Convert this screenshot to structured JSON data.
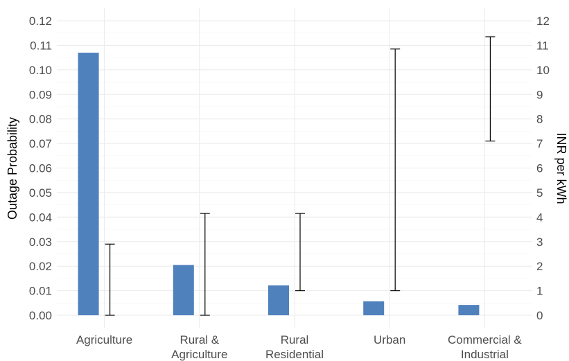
{
  "chart_data": {
    "type": "bar",
    "title": "",
    "xlabel": "",
    "ylabel": "Outage Probability",
    "y2label": "INR per kWh",
    "ylim": [
      0,
      0.12
    ],
    "y2lim": [
      0,
      12
    ],
    "grid": true,
    "categories": [
      "Agriculture",
      "Rural & Agriculture",
      "Rural Residential",
      "Urban",
      "Commercial & Industrial"
    ],
    "category_lines": [
      [
        "Agriculture"
      ],
      [
        "Rural &",
        "Agriculture"
      ],
      [
        "Rural",
        "Residential"
      ],
      [
        "Urban"
      ],
      [
        "Commercial &",
        "Industrial"
      ]
    ],
    "bars": {
      "name": "Outage Probability",
      "axis": "left",
      "values": [
        0.107,
        0.0205,
        0.0122,
        0.0057,
        0.0042
      ],
      "color": "#4f81bd"
    },
    "error_bars": {
      "name": "INR per kWh",
      "axis": "right",
      "low": [
        0.0,
        0.0,
        1.0,
        1.0,
        7.1
      ],
      "high": [
        2.9,
        4.15,
        4.15,
        10.85,
        11.35
      ],
      "color": "#000000"
    },
    "y_ticks": [
      "0.00",
      "0.01",
      "0.02",
      "0.03",
      "0.04",
      "0.05",
      "0.06",
      "0.07",
      "0.08",
      "0.09",
      "0.10",
      "0.11",
      "0.12"
    ],
    "y2_ticks": [
      "0",
      "1",
      "2",
      "3",
      "4",
      "5",
      "6",
      "7",
      "8",
      "9",
      "10",
      "11",
      "12"
    ]
  }
}
